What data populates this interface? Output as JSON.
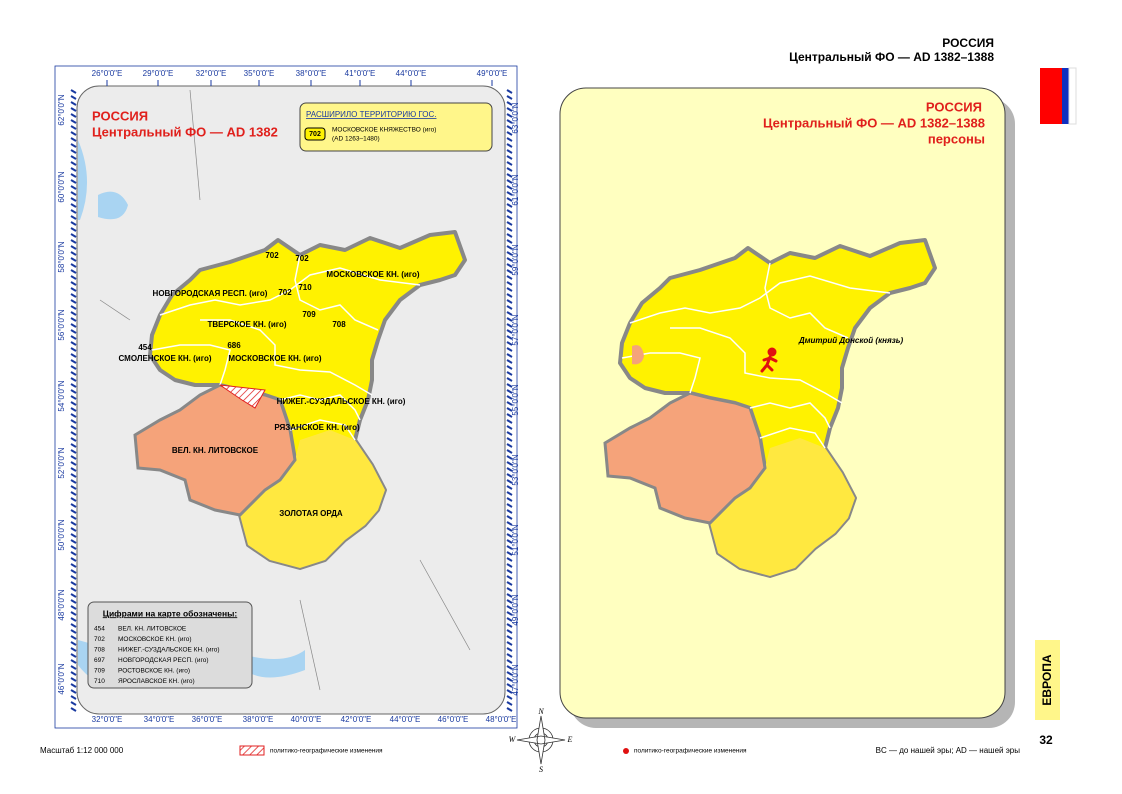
{
  "header": {
    "title": "РОССИЯ",
    "subtitle": "Центральный ФО — AD 1382–1388"
  },
  "left_map": {
    "title": "РОССИЯ",
    "subtitle": "Центральный ФО — AD 1382",
    "legend": {
      "title": "РАСШИРИЛО ТЕРРИТОРИЮ ГОС.",
      "code": "702",
      "name": "МОСКОВСКОЕ КНЯЖЕСТВО (иго)",
      "dates": "(AD 1263–1480)"
    },
    "top_ticks": [
      "26°0'0\"E",
      "29°0'0\"E",
      "32°0'0\"E",
      "35°0'0\"E",
      "38°0'0\"E",
      "41°0'0\"E",
      "44°0'0\"E",
      "49°0'0\"E"
    ],
    "bottom_ticks": [
      "32°0'0\"E",
      "34°0'0\"E",
      "36°0'0\"E",
      "38°0'0\"E",
      "40°0'0\"E",
      "42°0'0\"E",
      "44°0'0\"E",
      "46°0'0\"E",
      "48°0'0\"E"
    ],
    "left_ticks": [
      "62°0'0\"N",
      "60°0'0\"N",
      "58°0'0\"N",
      "56°0'0\"N",
      "54°0'0\"N",
      "52°0'0\"N",
      "50°0'0\"N",
      "48°0'0\"N",
      "46°0'0\"N"
    ],
    "right_ticks": [
      "63°0'0\"N",
      "61°0'0\"N",
      "59°0'0\"N",
      "57°0'0\"N",
      "55°0'0\"N",
      "53°0'0\"N",
      "51°0'0\"N",
      "49°0'0\"N",
      "47°0'0\"N"
    ],
    "labels": [
      "НОВГОРОДСКАЯ РЕСП. (иго)",
      "МОСКОВСКОЕ КН. (иго)",
      "ТВЕРСКОЕ КН. (иго)",
      "СМОЛЕНСКОЕ КН. (иго)",
      "МОСКОВСКОЕ КН. (иго)",
      "НИЖЕГ.-СУЗДАЛЬСКОЕ КН. (иго)",
      "РЯЗАНСКОЕ КН. (иго)",
      "ВЕЛ. КН. ЛИТОВСКОЕ",
      "ЗОЛОТАЯ ОРДА"
    ],
    "codes": [
      "702",
      "702",
      "702",
      "710",
      "709",
      "708",
      "686",
      "454"
    ],
    "key": {
      "title": "Цифрами на карте обозначены:",
      "items": [
        {
          "code": "454",
          "name": "ВЕЛ. КН. ЛИТОВСКОЕ"
        },
        {
          "code": "702",
          "name": "МОСКОВСКОЕ КН. (иго)"
        },
        {
          "code": "708",
          "name": "НИЖЕГ.-СУЗДАЛЬСКОЕ КН. (иго)"
        },
        {
          "code": "697",
          "name": "НОВГОРОДСКАЯ РЕСП. (иго)"
        },
        {
          "code": "709",
          "name": "РОСТОВСКОЕ КН. (иго)"
        },
        {
          "code": "710",
          "name": "ЯРОСЛАВСКОЕ КН. (иго)"
        }
      ]
    }
  },
  "right_map": {
    "title": "РОССИЯ",
    "subtitle": "Центральный ФО — AD 1382–1388",
    "note": "персоны",
    "person": "Дмитрий Донской (князь)"
  },
  "compass": [
    "N",
    "W",
    "E",
    "S"
  ],
  "footer": {
    "scale": "Масштаб 1:12 000 000",
    "changes": "политико-географические изменения",
    "persons": "политико-географические изменения",
    "era": "BC — до нашей эры; AD — нашей эры"
  },
  "side": {
    "region": "ЕВРОПА",
    "page": "32"
  }
}
